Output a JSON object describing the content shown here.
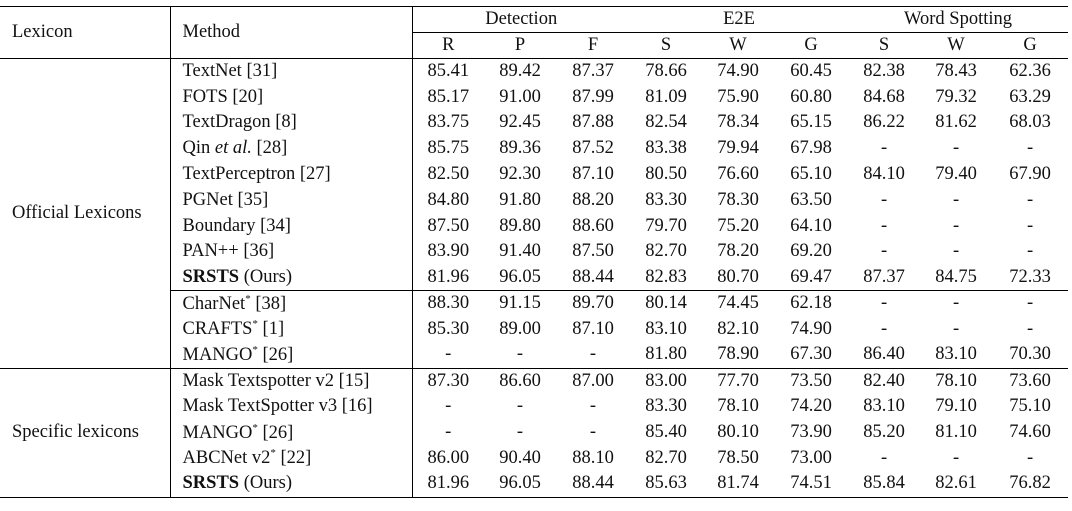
{
  "header": {
    "lexicon": "Lexicon",
    "method": "Method",
    "groups": [
      "Detection",
      "E2E",
      "Word Spotting"
    ],
    "subcols": [
      "R",
      "P",
      "F",
      "S",
      "W",
      "G",
      "S",
      "W",
      "G"
    ]
  },
  "sections": [
    {
      "lexicon": "Official Lexicons",
      "blocks": [
        [
          {
            "pre": "TextNet",
            "ital": "",
            "sup": "",
            "post": " [31]",
            "bold_name": false,
            "v": [
              "85.41",
              "89.42",
              "87.37",
              "78.66",
              "74.90",
              "60.45",
              "82.38",
              "78.43",
              "62.36"
            ],
            "bold": []
          },
          {
            "pre": "FOTS",
            "ital": "",
            "sup": "",
            "post": " [20]",
            "bold_name": false,
            "v": [
              "85.17",
              "91.00",
              "87.99",
              "81.09",
              "75.90",
              "60.80",
              "84.68",
              "79.32",
              "63.29"
            ],
            "bold": []
          },
          {
            "pre": "TextDragon",
            "ital": "",
            "sup": "",
            "post": " [8]",
            "bold_name": false,
            "v": [
              "83.75",
              "92.45",
              "87.88",
              "82.54",
              "78.34",
              "65.15",
              "86.22",
              "81.62",
              "68.03"
            ],
            "bold": []
          },
          {
            "pre": "Qin ",
            "ital": "et al.",
            "sup": "",
            "post": " [28]",
            "bold_name": false,
            "v": [
              "85.75",
              "89.36",
              "87.52",
              "83.38",
              "79.94",
              "67.98",
              "-",
              "-",
              "-"
            ],
            "bold": [
              3
            ]
          },
          {
            "pre": "TextPerceptron",
            "ital": "",
            "sup": "",
            "post": " [27]",
            "bold_name": false,
            "v": [
              "82.50",
              "92.30",
              "87.10",
              "80.50",
              "76.60",
              "65.10",
              "84.10",
              "79.40",
              "67.90"
            ],
            "bold": []
          },
          {
            "pre": "PGNet",
            "ital": "",
            "sup": "",
            "post": " [35]",
            "bold_name": false,
            "v": [
              "84.80",
              "91.80",
              "88.20",
              "83.30",
              "78.30",
              "63.50",
              "-",
              "-",
              "-"
            ],
            "bold": []
          },
          {
            "pre": "Boundary",
            "ital": "",
            "sup": "",
            "post": " [34]",
            "bold_name": false,
            "v": [
              "87.50",
              "89.80",
              "88.60",
              "79.70",
              "75.20",
              "64.10",
              "-",
              "-",
              "-"
            ],
            "bold": [
              0,
              2
            ]
          },
          {
            "pre": "PAN++",
            "ital": "",
            "sup": "",
            "post": " [36]",
            "bold_name": false,
            "v": [
              "83.90",
              "91.40",
              "87.50",
              "82.70",
              "78.20",
              "69.20",
              "-",
              "-",
              "-"
            ],
            "bold": []
          },
          {
            "pre": "SRSTS",
            "ital": "",
            "sup": "",
            "post": " (Ours)",
            "bold_name": true,
            "v": [
              "81.96",
              "96.05",
              "88.44",
              "82.83",
              "80.70",
              "69.47",
              "87.37",
              "84.75",
              "72.33"
            ],
            "bold": [
              1,
              4,
              5,
              6,
              7,
              8
            ]
          }
        ],
        [
          {
            "pre": "CharNet",
            "ital": "",
            "sup": "*",
            "post": " [38]",
            "bold_name": false,
            "v": [
              "88.30",
              "91.15",
              "89.70",
              "80.14",
              "74.45",
              "62.18",
              "-",
              "-",
              "-"
            ],
            "bold": []
          },
          {
            "pre": "CRAFTS",
            "ital": "",
            "sup": "*",
            "post": " [1]",
            "bold_name": false,
            "v": [
              "85.30",
              "89.00",
              "87.10",
              "83.10",
              "82.10",
              "74.90",
              "-",
              "-",
              "-"
            ],
            "bold": []
          },
          {
            "pre": "MANGO",
            "ital": "",
            "sup": "*",
            "post": " [26]",
            "bold_name": false,
            "v": [
              "-",
              "-",
              "-",
              "81.80",
              "78.90",
              "67.30",
              "86.40",
              "83.10",
              "70.30"
            ],
            "bold": []
          }
        ]
      ]
    },
    {
      "lexicon": "Specific lexicons",
      "blocks": [
        [
          {
            "pre": "Mask Textspotter v2",
            "ital": "",
            "sup": "",
            "post": " [15]",
            "bold_name": false,
            "v": [
              "87.30",
              "86.60",
              "87.00",
              "83.00",
              "77.70",
              "73.50",
              "82.40",
              "78.10",
              "73.60"
            ],
            "bold": []
          },
          {
            "pre": "Mask TextSpotter v3",
            "ital": "",
            "sup": "",
            "post": " [16]",
            "bold_name": false,
            "v": [
              "-",
              "-",
              "-",
              "83.30",
              "78.10",
              "74.20",
              "83.10",
              "79.10",
              "75.10"
            ],
            "bold": []
          },
          {
            "pre": "MANGO",
            "ital": "",
            "sup": "*",
            "post": " [26]",
            "bold_name": false,
            "v": [
              "-",
              "-",
              "-",
              "85.40",
              "80.10",
              "73.90",
              "85.20",
              "81.10",
              "74.60"
            ],
            "bold": []
          },
          {
            "pre": "ABCNet v2",
            "ital": "",
            "sup": "*",
            "post": " [22]",
            "bold_name": false,
            "v": [
              "86.00",
              "90.40",
              "88.10",
              "82.70",
              "78.50",
              "73.00",
              "-",
              "-",
              "-"
            ],
            "bold": []
          },
          {
            "pre": "SRSTS",
            "ital": "",
            "sup": "",
            "post": " (Ours)",
            "bold_name": true,
            "v": [
              "81.96",
              "96.05",
              "88.44",
              "85.63",
              "81.74",
              "74.51",
              "85.84",
              "82.61",
              "76.82"
            ],
            "bold": [
              3,
              4,
              5,
              6,
              7,
              8
            ]
          }
        ]
      ]
    }
  ]
}
